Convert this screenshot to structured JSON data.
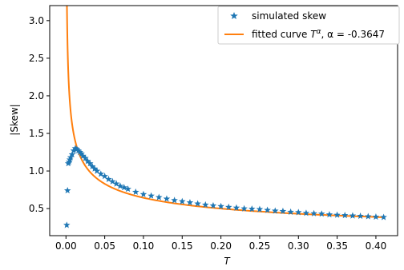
{
  "chart_data": {
    "type": "scatter",
    "xlabel": "T",
    "ylabel": "|Skew|",
    "xlim": [
      -0.021,
      0.428
    ],
    "ylim": [
      0.14,
      3.2
    ],
    "xticks": [
      0.0,
      0.05,
      0.1,
      0.15,
      0.2,
      0.25,
      0.3,
      0.35,
      0.4
    ],
    "xtick_labels": [
      "0.00",
      "0.05",
      "0.10",
      "0.15",
      "0.20",
      "0.25",
      "0.30",
      "0.35",
      "0.40"
    ],
    "yticks": [
      0.5,
      1.0,
      1.5,
      2.0,
      2.5,
      3.0
    ],
    "ytick_labels": [
      "0.5",
      "1.0",
      "1.5",
      "2.0",
      "2.5",
      "3.0"
    ],
    "grid": false,
    "legend_position": "top-right",
    "series": [
      {
        "name": "simulated skew",
        "kind": "scatter",
        "marker": "star",
        "color": "#1f77b4",
        "points": [
          [
            0.001,
            0.28
          ],
          [
            0.002,
            0.74
          ],
          [
            0.003,
            1.1
          ],
          [
            0.004,
            1.12
          ],
          [
            0.005,
            1.15
          ],
          [
            0.006,
            1.18
          ],
          [
            0.008,
            1.22
          ],
          [
            0.01,
            1.27
          ],
          [
            0.012,
            1.3
          ],
          [
            0.014,
            1.29
          ],
          [
            0.016,
            1.27
          ],
          [
            0.018,
            1.25
          ],
          [
            0.02,
            1.23
          ],
          [
            0.022,
            1.2
          ],
          [
            0.025,
            1.17
          ],
          [
            0.028,
            1.13
          ],
          [
            0.031,
            1.1
          ],
          [
            0.034,
            1.06
          ],
          [
            0.037,
            1.03
          ],
          [
            0.04,
            1.0
          ],
          [
            0.045,
            0.96
          ],
          [
            0.05,
            0.93
          ],
          [
            0.055,
            0.89
          ],
          [
            0.06,
            0.86
          ],
          [
            0.065,
            0.83
          ],
          [
            0.07,
            0.8
          ],
          [
            0.075,
            0.78
          ],
          [
            0.08,
            0.76
          ],
          [
            0.09,
            0.72
          ],
          [
            0.1,
            0.69
          ],
          [
            0.11,
            0.67
          ],
          [
            0.12,
            0.65
          ],
          [
            0.13,
            0.63
          ],
          [
            0.14,
            0.61
          ],
          [
            0.15,
            0.595
          ],
          [
            0.16,
            0.58
          ],
          [
            0.17,
            0.565
          ],
          [
            0.18,
            0.55
          ],
          [
            0.19,
            0.54
          ],
          [
            0.2,
            0.53
          ],
          [
            0.21,
            0.52
          ],
          [
            0.22,
            0.51
          ],
          [
            0.23,
            0.5
          ],
          [
            0.24,
            0.495
          ],
          [
            0.25,
            0.49
          ],
          [
            0.26,
            0.48
          ],
          [
            0.27,
            0.47
          ],
          [
            0.28,
            0.465
          ],
          [
            0.29,
            0.455
          ],
          [
            0.3,
            0.45
          ],
          [
            0.31,
            0.44
          ],
          [
            0.32,
            0.435
          ],
          [
            0.33,
            0.43
          ],
          [
            0.34,
            0.42
          ],
          [
            0.35,
            0.415
          ],
          [
            0.36,
            0.41
          ],
          [
            0.37,
            0.405
          ],
          [
            0.38,
            0.4
          ],
          [
            0.39,
            0.395
          ],
          [
            0.4,
            0.39
          ],
          [
            0.41,
            0.385
          ]
        ]
      },
      {
        "name": "fitted curve",
        "kind": "line",
        "color": "#ff7f0e",
        "alpha": -0.3647,
        "x_range": [
          0.0005,
          0.41
        ]
      }
    ],
    "legend": [
      {
        "label_text": "simulated skew"
      },
      {
        "label_prefix": "fitted curve ",
        "label_base": "T",
        "label_exp": "α",
        "label_suffix": ", α = -0.3647"
      }
    ]
  }
}
